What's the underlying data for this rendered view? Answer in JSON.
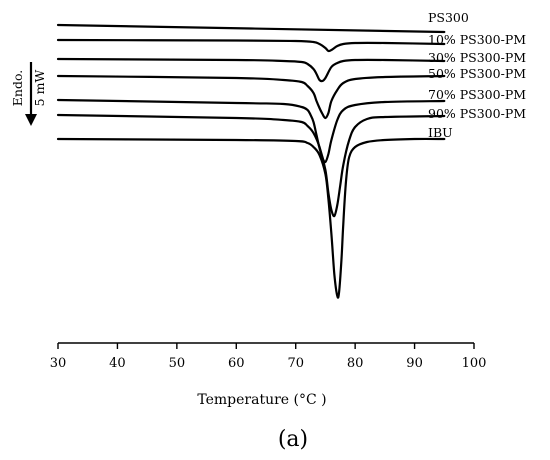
{
  "chart_data": {
    "type": "line",
    "xlabel": "Temperature (°C )",
    "ylabel": "",
    "xlim": [
      30,
      100
    ],
    "xticks": [
      30,
      40,
      50,
      60,
      70,
      80,
      90,
      100
    ],
    "y_axis_visible": false,
    "grid": false,
    "legend": "inline labels at right end of each curve",
    "scale_bar": {
      "direction_label": "Endo.",
      "value_label": "5 mW",
      "direction": "down"
    },
    "panel_label": "(a)",
    "series": [
      {
        "name": "PS300",
        "offset": 25,
        "x": [
          30,
          95
        ],
        "y": [
          0,
          -7
        ]
      },
      {
        "name": "10% PS300-PM",
        "offset": 40,
        "x": [
          30,
          60,
          70,
          73,
          74,
          75,
          75.5,
          76,
          77,
          78,
          80,
          85,
          95
        ],
        "y": [
          0,
          -0.5,
          -1,
          -2,
          -4,
          -8,
          -11,
          -10,
          -6,
          -4,
          -3,
          -3,
          -4
        ]
      },
      {
        "name": "30% PS300-PM",
        "offset": 59,
        "x": [
          30,
          60,
          68,
          71,
          72,
          73,
          73.5,
          74,
          74.5,
          75,
          76,
          77,
          78,
          80,
          85,
          95
        ],
        "y": [
          0,
          -1,
          -2,
          -3,
          -5,
          -10,
          -15,
          -21,
          -22,
          -19,
          -8,
          -4,
          -2,
          -1,
          -1,
          -2
        ]
      },
      {
        "name": "50% PS300-PM",
        "offset": 76,
        "x": [
          30,
          60,
          68,
          71,
          72,
          73,
          73.5,
          74,
          74.5,
          75,
          75.5,
          76,
          77,
          78,
          80,
          85,
          95
        ],
        "y": [
          0,
          -2,
          -4,
          -6,
          -10,
          -17,
          -25,
          -32,
          -38,
          -42,
          -37,
          -25,
          -14,
          -7,
          -3,
          -1,
          0
        ]
      },
      {
        "name": "70% PS300-PM",
        "offset": 100,
        "x": [
          30,
          60,
          68,
          71,
          72,
          72.5,
          73,
          73.5,
          74,
          74.5,
          75,
          75.5,
          76,
          77,
          78,
          80,
          85,
          95
        ],
        "y": [
          0,
          -3,
          -4,
          -7,
          -10,
          -15,
          -22,
          -35,
          -48,
          -58,
          -62,
          -54,
          -40,
          -20,
          -10,
          -5,
          -2,
          -1
        ]
      },
      {
        "name": "90% PS300-PM",
        "offset": 115,
        "x": [
          30,
          60,
          68,
          71,
          72,
          73,
          74,
          75,
          75.5,
          76,
          76.5,
          77,
          77.5,
          78,
          79,
          80,
          82,
          85,
          95
        ],
        "y": [
          0,
          -3,
          -5,
          -7,
          -11,
          -18,
          -32,
          -55,
          -78,
          -95,
          -101,
          -90,
          -70,
          -50,
          -25,
          -12,
          -4,
          -2,
          -1
        ]
      },
      {
        "name": "IBU",
        "offset": 139,
        "x": [
          30,
          60,
          70,
          72,
          73,
          74,
          75,
          75.5,
          76,
          76.5,
          77,
          77.3,
          77.7,
          78,
          78.5,
          79,
          80,
          82,
          85,
          90,
          95
        ],
        "y": [
          0,
          -1,
          -2,
          -4,
          -8,
          -16,
          -35,
          -60,
          -95,
          -135,
          -157,
          -153,
          -120,
          -85,
          -40,
          -18,
          -8,
          -3,
          -1,
          0,
          0
        ]
      }
    ]
  }
}
